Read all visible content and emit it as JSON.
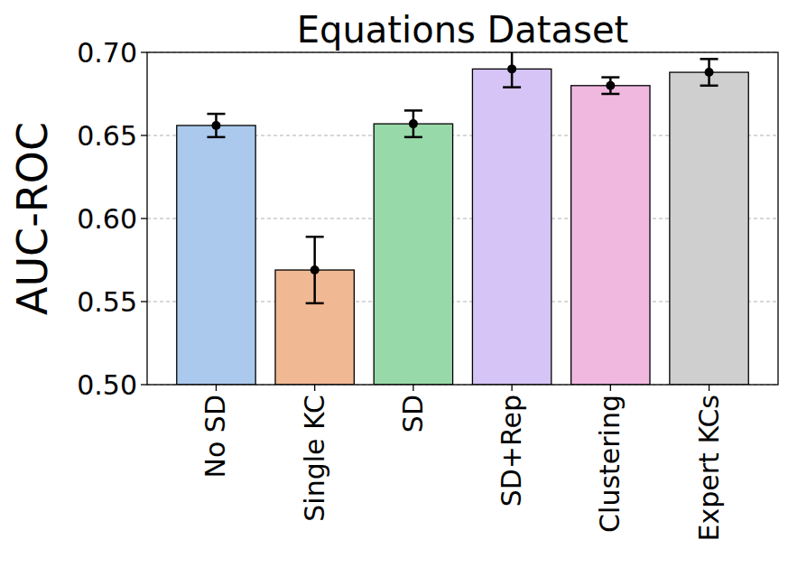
{
  "chart_data": {
    "type": "bar",
    "title": "Equations Dataset",
    "y_label": "AUC-ROC",
    "categories": [
      "No SD",
      "Single KC",
      "SD",
      "SD+Rep",
      "Clustering",
      "Expert KCs"
    ],
    "values": [
      0.656,
      0.569,
      0.657,
      0.69,
      0.68,
      0.688
    ],
    "errors": [
      0.007,
      0.02,
      0.008,
      0.011,
      0.005,
      0.008
    ],
    "colors": [
      "#abc9ed",
      "#f0b893",
      "#98d9a9",
      "#d5c4f5",
      "#f0b8df",
      "#cfcfcf"
    ],
    "ylim": [
      0.5,
      0.7
    ],
    "yticks": [
      {
        "value": 0.5,
        "label": "0.50"
      },
      {
        "value": 0.55,
        "label": "0.55"
      },
      {
        "value": 0.6,
        "label": "0.60"
      },
      {
        "value": 0.65,
        "label": "0.65"
      },
      {
        "value": 0.7,
        "label": "0.70"
      }
    ],
    "grid": true
  }
}
